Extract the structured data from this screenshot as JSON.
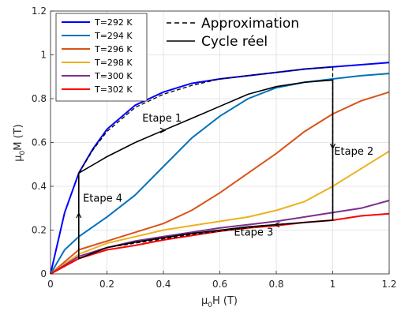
{
  "chart_data": {
    "type": "line",
    "xlabel": {
      "main": "μ",
      "sub": "0",
      "rest": "H (T)"
    },
    "ylabel": {
      "main": "μ",
      "sub": "0",
      "rest": "M (T)"
    },
    "xlim": [
      0,
      1.2
    ],
    "ylim": [
      0,
      1.2
    ],
    "xticks": [
      0,
      0.2,
      0.4,
      0.6,
      0.8,
      1,
      1.2
    ],
    "yticks": [
      0,
      0.2,
      0.4,
      0.6,
      0.8,
      1,
      1.2
    ],
    "xtick_labels": [
      "0",
      "0.2",
      "0.4",
      "0.6",
      "0.8",
      "1",
      "1.2"
    ],
    "ytick_labels": [
      "0",
      "0.2",
      "0.4",
      "0.6",
      "0.8",
      "1",
      "1.2"
    ],
    "grid": true,
    "series": [
      {
        "name": "T=292 K",
        "color": "#0000ff",
        "x": [
          0,
          0.05,
          0.1,
          0.15,
          0.2,
          0.3,
          0.4,
          0.5,
          0.6,
          0.7,
          0.8,
          0.9,
          1.0,
          1.1,
          1.2
        ],
        "y": [
          0,
          0.28,
          0.46,
          0.57,
          0.66,
          0.77,
          0.83,
          0.87,
          0.89,
          0.905,
          0.92,
          0.935,
          0.945,
          0.955,
          0.965
        ]
      },
      {
        "name": "T=294 K",
        "color": "#0072bd",
        "x": [
          0,
          0.05,
          0.1,
          0.2,
          0.3,
          0.4,
          0.5,
          0.6,
          0.7,
          0.8,
          0.9,
          1.0,
          1.1,
          1.2
        ],
        "y": [
          0,
          0.11,
          0.17,
          0.26,
          0.36,
          0.49,
          0.62,
          0.72,
          0.8,
          0.85,
          0.875,
          0.89,
          0.905,
          0.915
        ]
      },
      {
        "name": "T=296 K",
        "color": "#d95319",
        "x": [
          0,
          0.1,
          0.2,
          0.3,
          0.4,
          0.5,
          0.6,
          0.7,
          0.8,
          0.9,
          1.0,
          1.1,
          1.2
        ],
        "y": [
          0,
          0.11,
          0.15,
          0.19,
          0.23,
          0.29,
          0.37,
          0.46,
          0.55,
          0.65,
          0.73,
          0.79,
          0.83
        ]
      },
      {
        "name": "T=298 K",
        "color": "#edb120",
        "x": [
          0,
          0.1,
          0.2,
          0.3,
          0.4,
          0.5,
          0.6,
          0.7,
          0.8,
          0.9,
          1.0,
          1.1,
          1.2
        ],
        "y": [
          0,
          0.09,
          0.14,
          0.17,
          0.2,
          0.22,
          0.24,
          0.26,
          0.29,
          0.33,
          0.4,
          0.48,
          0.56
        ]
      },
      {
        "name": "T=300 K",
        "color": "#7e2f8e",
        "x": [
          0,
          0.1,
          0.2,
          0.3,
          0.4,
          0.5,
          0.6,
          0.7,
          0.8,
          0.9,
          1.0,
          1.1,
          1.2
        ],
        "y": [
          0,
          0.08,
          0.12,
          0.15,
          0.17,
          0.19,
          0.21,
          0.225,
          0.24,
          0.26,
          0.28,
          0.3,
          0.335
        ]
      },
      {
        "name": "T=302 K",
        "color": "#ff0000",
        "x": [
          0,
          0.1,
          0.2,
          0.3,
          0.4,
          0.5,
          0.6,
          0.7,
          0.8,
          0.9,
          1.0,
          1.1,
          1.2
        ],
        "y": [
          0,
          0.07,
          0.11,
          0.13,
          0.155,
          0.175,
          0.195,
          0.21,
          0.22,
          0.235,
          0.245,
          0.265,
          0.275
        ]
      }
    ],
    "approximation": {
      "name": "Approximation",
      "color": "#000000",
      "x": [
        0.1,
        0.15,
        0.2,
        0.3,
        0.4,
        0.5,
        0.6,
        0.7,
        0.8,
        0.9,
        1.0,
        1.0,
        0.9,
        0.8,
        0.7,
        0.6,
        0.5,
        0.4,
        0.3,
        0.2,
        0.1,
        0.1
      ],
      "y": [
        0.46,
        0.565,
        0.65,
        0.76,
        0.82,
        0.86,
        0.89,
        0.905,
        0.92,
        0.935,
        0.945,
        0.245,
        0.235,
        0.225,
        0.21,
        0.195,
        0.18,
        0.16,
        0.14,
        0.12,
        0.07,
        0.46
      ]
    },
    "cycle": {
      "name": "Cycle réel",
      "color": "#000000",
      "x": [
        0.1,
        0.2,
        0.3,
        0.4,
        0.5,
        0.6,
        0.7,
        0.8,
        0.9,
        1.0,
        1.0,
        0.9,
        0.8,
        0.7,
        0.6,
        0.5,
        0.4,
        0.3,
        0.2,
        0.1,
        0.1
      ],
      "y": [
        0.46,
        0.535,
        0.6,
        0.655,
        0.71,
        0.765,
        0.82,
        0.855,
        0.875,
        0.885,
        0.245,
        0.235,
        0.225,
        0.215,
        0.2,
        0.185,
        0.165,
        0.145,
        0.12,
        0.07,
        0.46
      ]
    },
    "arrows": [
      {
        "x": 0.4,
        "y": 0.655,
        "dir": "right"
      },
      {
        "x": 1.0,
        "y": 0.58,
        "dir": "down"
      },
      {
        "x": 0.8,
        "y": 0.225,
        "dir": "left"
      },
      {
        "x": 0.1,
        "y": 0.27,
        "dir": "up"
      }
    ],
    "annotations": [
      {
        "text": "Etape 1",
        "x": 0.325,
        "y": 0.695
      },
      {
        "text": "Etape 2",
        "x": 1.005,
        "y": 0.545
      },
      {
        "text": "Etape 3",
        "x": 0.65,
        "y": 0.175
      },
      {
        "text": "Etape 4",
        "x": 0.115,
        "y": 0.33
      }
    ],
    "legend_placement": "top-left",
    "legend2_placement": "top"
  }
}
